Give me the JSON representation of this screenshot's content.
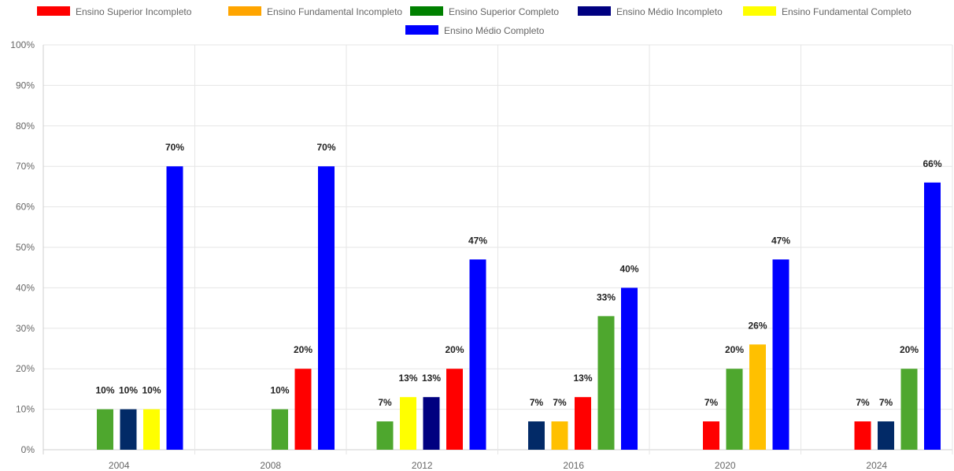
{
  "chart_data": {
    "type": "bar",
    "title": "",
    "xlabel": "",
    "ylabel": "",
    "ylim": [
      0,
      100
    ],
    "y_ticks": [
      "0%",
      "10%",
      "20%",
      "30%",
      "40%",
      "50%",
      "60%",
      "70%",
      "80%",
      "90%",
      "100%"
    ],
    "legend_position": "top",
    "grid": true,
    "categories": [
      "2004",
      "2008",
      "2012",
      "2016",
      "2020",
      "2024"
    ],
    "legend": [
      {
        "name": "Ensino Superior Incompleto",
        "color": "#ff0000"
      },
      {
        "name": "Ensino Fundamental Incompleto",
        "color": "#ffa500"
      },
      {
        "name": "Ensino Superior Completo",
        "color": "#008000"
      },
      {
        "name": "Ensino Médio Incompleto",
        "color": "#000080"
      },
      {
        "name": "Ensino Fundamental Completo",
        "color": "#ffff00"
      },
      {
        "name": "Ensino Médio Completo",
        "color": "#0000ff"
      }
    ],
    "groups": [
      {
        "category": "2004",
        "bars": [
          {
            "value": 10,
            "label": "10%",
            "color": "#4ea72e"
          },
          {
            "value": 10,
            "label": "10%",
            "color": "#022a67"
          },
          {
            "value": 10,
            "label": "10%",
            "color": "#ffff00"
          },
          {
            "value": 70,
            "label": "70%",
            "color": "#0000ff"
          }
        ]
      },
      {
        "category": "2008",
        "bars": [
          {
            "value": 10,
            "label": "10%",
            "color": "#4ea72e"
          },
          {
            "value": 20,
            "label": "20%",
            "color": "#ff0000"
          },
          {
            "value": 70,
            "label": "70%",
            "color": "#0000ff"
          }
        ]
      },
      {
        "category": "2012",
        "bars": [
          {
            "value": 7,
            "label": "7%",
            "color": "#4ea72e"
          },
          {
            "value": 13,
            "label": "13%",
            "color": "#ffff00"
          },
          {
            "value": 13,
            "label": "13%",
            "color": "#000080"
          },
          {
            "value": 20,
            "label": "20%",
            "color": "#ff0000"
          },
          {
            "value": 47,
            "label": "47%",
            "color": "#0000ff"
          }
        ]
      },
      {
        "category": "2016",
        "bars": [
          {
            "value": 7,
            "label": "7%",
            "color": "#022a67"
          },
          {
            "value": 7,
            "label": "7%",
            "color": "#ffc000"
          },
          {
            "value": 13,
            "label": "13%",
            "color": "#ff0000"
          },
          {
            "value": 33,
            "label": "33%",
            "color": "#4ea72e"
          },
          {
            "value": 40,
            "label": "40%",
            "color": "#0000ff"
          }
        ]
      },
      {
        "category": "2020",
        "bars": [
          {
            "value": 7,
            "label": "7%",
            "color": "#ff0000"
          },
          {
            "value": 20,
            "label": "20%",
            "color": "#4ea72e"
          },
          {
            "value": 26,
            "label": "26%",
            "color": "#ffc000"
          },
          {
            "value": 47,
            "label": "47%",
            "color": "#0000ff"
          }
        ]
      },
      {
        "category": "2024",
        "bars": [
          {
            "value": 7,
            "label": "7%",
            "color": "#ff0000"
          },
          {
            "value": 7,
            "label": "7%",
            "color": "#022a67"
          },
          {
            "value": 20,
            "label": "20%",
            "color": "#4ea72e"
          },
          {
            "value": 66,
            "label": "66%",
            "color": "#0000ff"
          }
        ]
      }
    ]
  }
}
